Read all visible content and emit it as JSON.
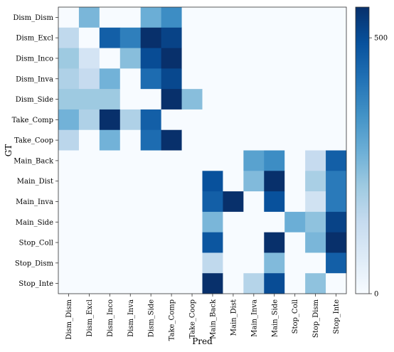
{
  "chart_data": {
    "type": "heatmap",
    "title": "",
    "xlabel": "Pred",
    "ylabel": "GT",
    "x_categories": [
      "Dism_Dism",
      "Dism_Excl",
      "Dism_Inco",
      "Dism_Inva",
      "Dism_Side",
      "Take_Comp",
      "Take_Coop",
      "Main_Back",
      "Main_Dist",
      "Main_Inva",
      "Main_Side",
      "Stop_Coll",
      "Stop_Dism",
      "Stop_Inte"
    ],
    "y_categories": [
      "Dism_Dism",
      "Dism_Excl",
      "Dism_Inco",
      "Dism_Inva",
      "Dism_Side",
      "Take_Comp",
      "Take_Coop",
      "Main_Back",
      "Main_Dist",
      "Main_Inva",
      "Main_Side",
      "Stop_Coll",
      "Stop_Dism",
      "Stop_Inte"
    ],
    "values": [
      [
        0,
        260,
        0,
        0,
        280,
        360,
        0,
        0,
        0,
        0,
        0,
        0,
        0,
        0
      ],
      [
        150,
        0,
        460,
        390,
        560,
        520,
        0,
        0,
        0,
        0,
        0,
        0,
        0,
        0
      ],
      [
        210,
        100,
        0,
        240,
        500,
        560,
        0,
        0,
        0,
        0,
        0,
        0,
        0,
        0
      ],
      [
        180,
        140,
        270,
        0,
        430,
        510,
        0,
        0,
        0,
        0,
        0,
        0,
        0,
        0
      ],
      [
        210,
        210,
        210,
        0,
        0,
        560,
        240,
        0,
        0,
        0,
        0,
        0,
        0,
        0
      ],
      [
        270,
        180,
        560,
        180,
        460,
        0,
        0,
        0,
        0,
        0,
        0,
        0,
        0,
        0
      ],
      [
        160,
        0,
        270,
        0,
        430,
        560,
        0,
        0,
        0,
        0,
        0,
        0,
        0,
        0
      ],
      [
        0,
        0,
        0,
        0,
        0,
        0,
        0,
        0,
        0,
        310,
        360,
        0,
        140,
        460
      ],
      [
        0,
        0,
        0,
        0,
        0,
        0,
        0,
        490,
        0,
        250,
        560,
        0,
        190,
        400
      ],
      [
        0,
        0,
        0,
        0,
        0,
        0,
        0,
        460,
        560,
        0,
        490,
        0,
        110,
        400
      ],
      [
        0,
        0,
        0,
        0,
        0,
        0,
        0,
        260,
        0,
        0,
        0,
        280,
        230,
        520
      ],
      [
        0,
        0,
        0,
        0,
        0,
        0,
        0,
        480,
        0,
        0,
        560,
        0,
        260,
        560
      ],
      [
        0,
        0,
        0,
        0,
        0,
        0,
        0,
        150,
        0,
        0,
        250,
        0,
        0,
        460
      ],
      [
        0,
        0,
        0,
        0,
        0,
        0,
        0,
        560,
        0,
        170,
        500,
        0,
        230,
        0
      ]
    ],
    "colorbar": {
      "min": 0,
      "max": 560,
      "ticks": [
        0,
        500
      ],
      "colormap": [
        "#f7fbff",
        "#deebf7",
        "#c6dbef",
        "#9ecae1",
        "#6baed6",
        "#4292c6",
        "#2171b5",
        "#08519c",
        "#08306b"
      ]
    },
    "grid": false
  }
}
